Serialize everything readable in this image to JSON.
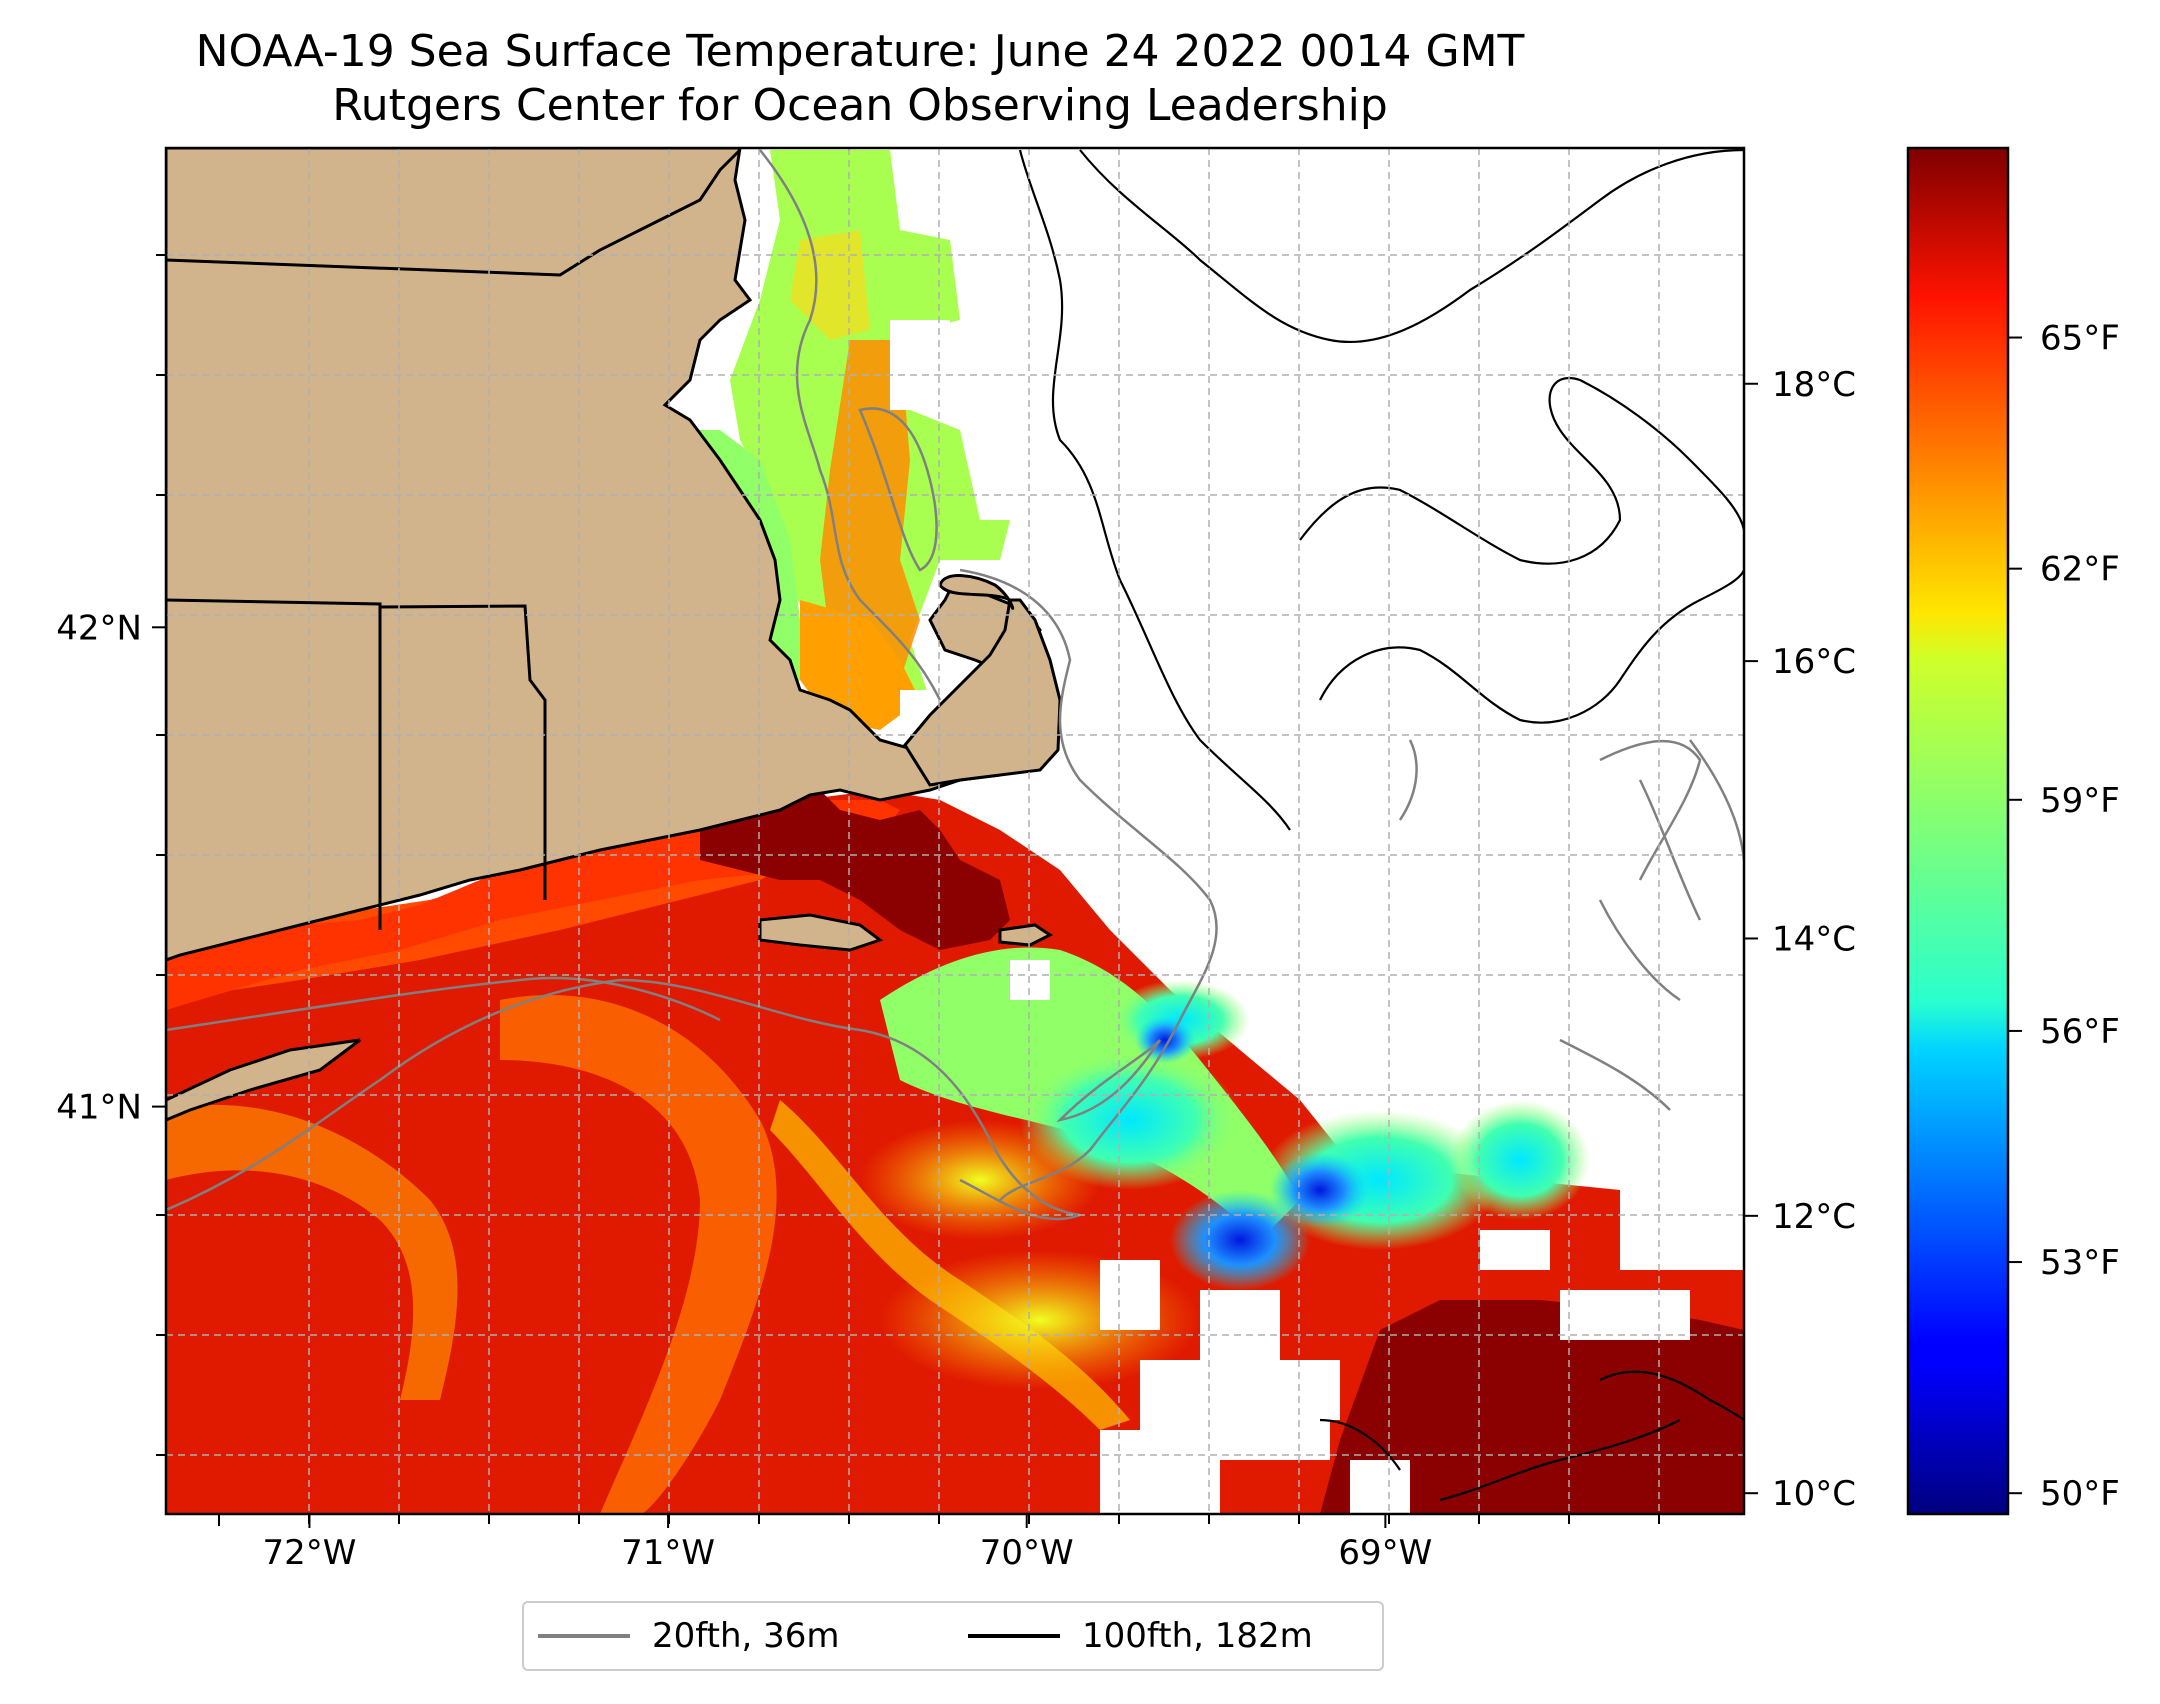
{
  "header": {
    "title_line1": "NOAA-19 Sea Surface Temperature: June 24 2022 0014 GMT",
    "title_line2": "Rutgers Center for Ocean Observing Leadership"
  },
  "map": {
    "x_ticks": [
      {
        "value": -72,
        "label": "72°W"
      },
      {
        "value": -71,
        "label": "71°W"
      },
      {
        "value": -70,
        "label": "70°W"
      },
      {
        "value": -69,
        "label": "69°W"
      }
    ],
    "y_ticks": [
      {
        "value": 42,
        "label": "42°N"
      },
      {
        "value": 41,
        "label": "41°N"
      }
    ],
    "lon_range": [
      -72.4,
      -68.0
    ],
    "lat_range": [
      40.15,
      43.0
    ],
    "land_color": "#d2b48c",
    "gridlines": true
  },
  "colorbar": {
    "celsius_ticks": [
      {
        "value": 10,
        "label": "10°C"
      },
      {
        "value": 12,
        "label": "12°C"
      },
      {
        "value": 14,
        "label": "14°C"
      },
      {
        "value": 16,
        "label": "16°C"
      },
      {
        "value": 18,
        "label": "18°C"
      }
    ],
    "fahrenheit_ticks": [
      {
        "value": 50,
        "label": "50°F"
      },
      {
        "value": 53,
        "label": "53°F"
      },
      {
        "value": 56,
        "label": "56°F"
      },
      {
        "value": 59,
        "label": "59°F"
      },
      {
        "value": 62,
        "label": "62°F"
      },
      {
        "value": 65,
        "label": "65°F"
      }
    ],
    "range_c": [
      9.85,
      19.7
    ],
    "colormap": "jet"
  },
  "legend": {
    "items": [
      {
        "label": "20fth, 36m",
        "color": "#808080"
      },
      {
        "label": "100fth, 182m",
        "color": "#000000"
      }
    ]
  }
}
